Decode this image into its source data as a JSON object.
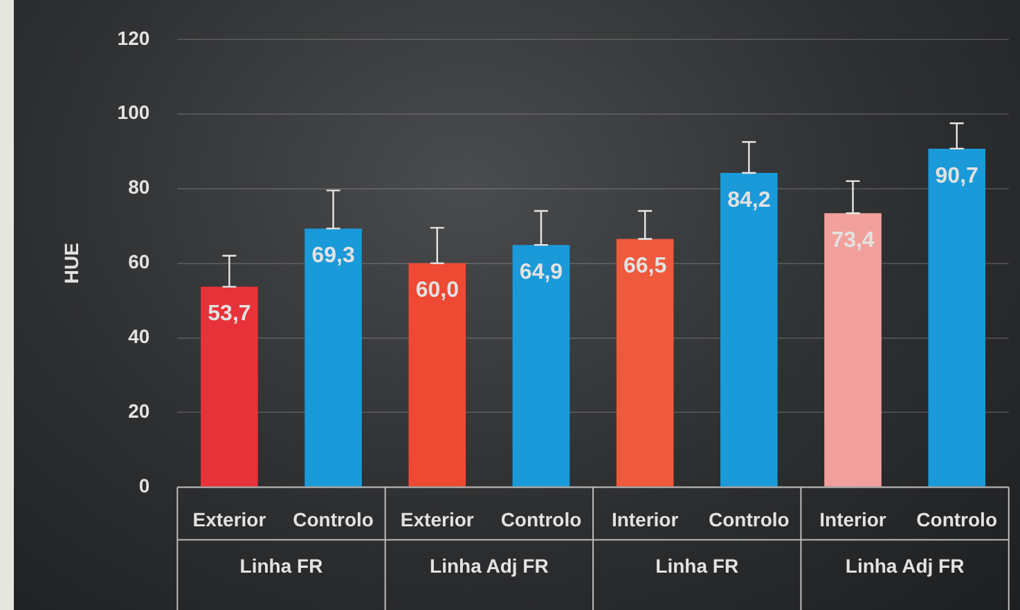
{
  "chart_data": {
    "type": "bar",
    "ylabel": "HUE",
    "categories": [
      "Exterior",
      "Controlo",
      "Exterior",
      "Controlo",
      "Interior",
      "Controlo",
      "Interior",
      "Controlo"
    ],
    "values": [
      53.7,
      69.3,
      60.0,
      64.9,
      66.5,
      84.2,
      73.4,
      90.7
    ],
    "colors": [
      "#e8323a",
      "#1a9ad8",
      "#ee4a33",
      "#1a9ad8",
      "#ef5a3c",
      "#1a9ad8",
      "#f2a09b",
      "#1a9ad8"
    ],
    "errors": [
      [
        53.7,
        62
      ],
      [
        69.3,
        79.5
      ],
      [
        60.0,
        69.5
      ],
      [
        64.9,
        74
      ],
      [
        66.5,
        74
      ],
      [
        84.2,
        92.5
      ],
      [
        73.4,
        82
      ],
      [
        90.7,
        97.5
      ]
    ],
    "value_labels": [
      "53,7",
      "69,3",
      "60,0",
      "64,9",
      "66,5",
      "84,2",
      "73,4",
      "90,7"
    ],
    "annotations": [
      "Linha FR",
      "Linha Adj FR",
      "Linha FR",
      "Linha Adj FR"
    ],
    "ylim": [
      0,
      120
    ],
    "yticks": [
      0,
      20,
      40,
      60,
      80,
      100,
      120
    ],
    "grid": "y",
    "legend": false
  }
}
